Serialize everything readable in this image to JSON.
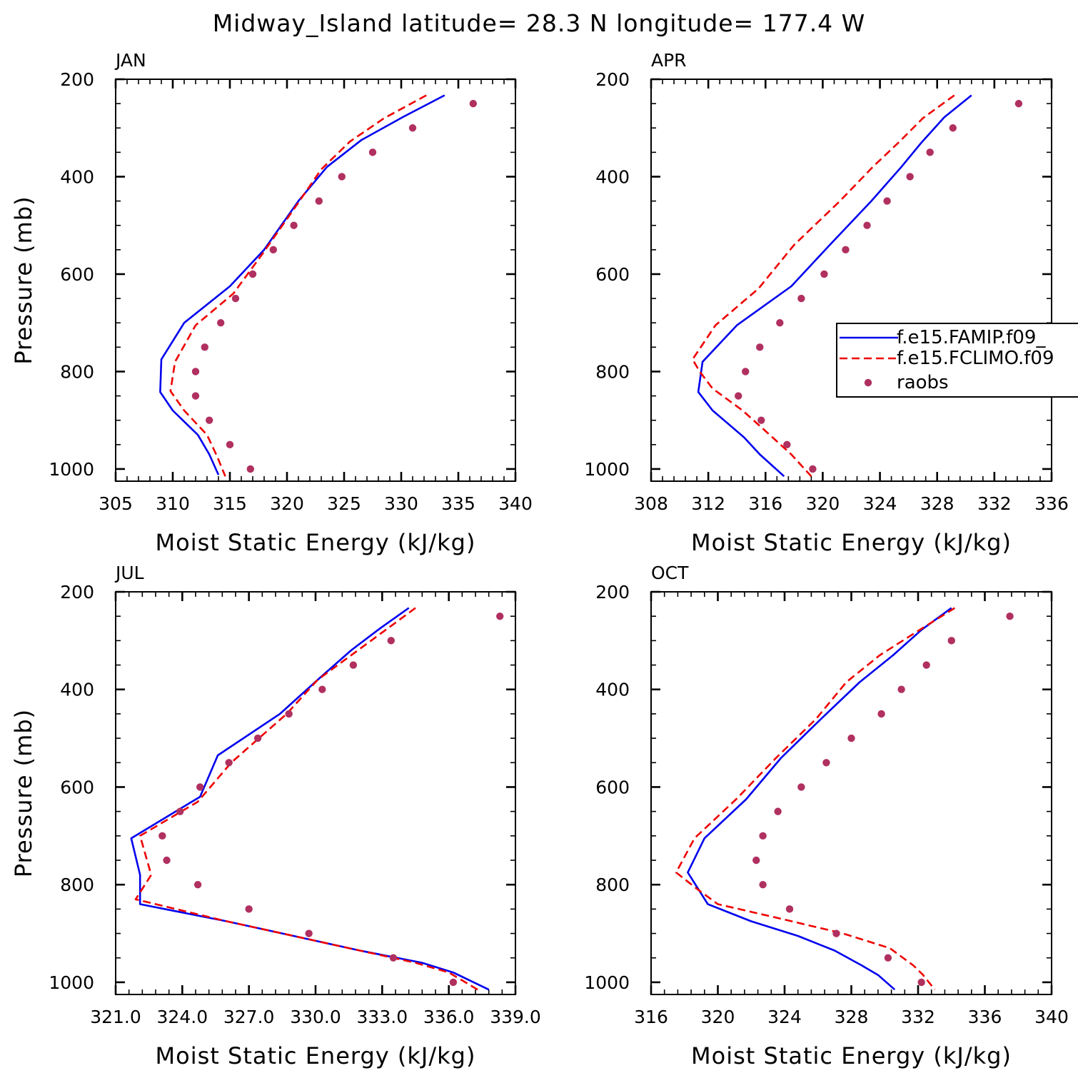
{
  "figure": {
    "title": "Midway_Island  latitude= 28.3 N longitude= 177.4 W"
  },
  "legend": {
    "panel": 1,
    "entries": [
      {
        "label": "f.e15.FAMIP.f09_",
        "style": "solid",
        "color": "#0000ee"
      },
      {
        "label": "f.e15.FCLIMO.f09",
        "style": "dashed",
        "color": "#ee0000"
      },
      {
        "label": "raobs",
        "style": "dots",
        "color": "#b03060"
      }
    ]
  },
  "chart_data": [
    {
      "type": "line",
      "panel_title": "JAN",
      "xlabel": "Moist Static Energy (kJ/kg)",
      "ylabel": "Pressure (mb)",
      "xlim": [
        305,
        340
      ],
      "xticks": [
        305,
        310,
        315,
        320,
        325,
        330,
        335,
        340
      ],
      "xtick_labels": [
        "305",
        "310",
        "315",
        "320",
        "325",
        "330",
        "335",
        "340"
      ],
      "ylim": [
        200,
        1025
      ],
      "yticks": [
        200,
        400,
        600,
        800,
        1000
      ],
      "series": [
        {
          "name": "f.e15.FAMIP.f09_",
          "style": "solid",
          "color": "#0000ee",
          "y": [
            233,
            277,
            325,
            380,
            450,
            550,
            625,
            700,
            775,
            842,
            880,
            930,
            970,
            1012
          ],
          "x": [
            333.8,
            330.2,
            326.5,
            323.5,
            321.0,
            318.0,
            315.0,
            311.0,
            309.0,
            308.9,
            310.0,
            312.2,
            313.2,
            314.0
          ]
        },
        {
          "name": "f.e15.FCLIMO.f09",
          "style": "dashed",
          "color": "#ee0000",
          "y": [
            233,
            280,
            328,
            385,
            460,
            560,
            640,
            705,
            780,
            840,
            880,
            930,
            975,
            1015
          ],
          "x": [
            332.2,
            328.5,
            325.5,
            323.0,
            320.8,
            317.8,
            315.3,
            312.0,
            310.2,
            309.8,
            311.0,
            313.0,
            313.9,
            314.6
          ]
        },
        {
          "name": "raobs",
          "style": "dots",
          "color": "#b03060",
          "y": [
            250,
            300,
            350,
            400,
            450,
            500,
            550,
            600,
            650,
            700,
            750,
            800,
            850,
            900,
            950,
            1000
          ],
          "x": [
            336.3,
            331.0,
            327.5,
            324.8,
            322.8,
            320.6,
            318.8,
            317.0,
            315.5,
            314.2,
            312.8,
            312.0,
            312.0,
            313.2,
            315.0,
            316.8
          ]
        }
      ]
    },
    {
      "type": "line",
      "panel_title": "APR",
      "xlabel": "Moist Static Energy (kJ/kg)",
      "ylabel": "",
      "xlim": [
        308,
        336
      ],
      "xticks": [
        308,
        312,
        316,
        320,
        324,
        328,
        332,
        336
      ],
      "xtick_labels": [
        "308",
        "312",
        "316",
        "320",
        "324",
        "328",
        "332",
        "336"
      ],
      "ylim": [
        200,
        1025
      ],
      "yticks": [
        200,
        400,
        600,
        800,
        1000
      ],
      "series": [
        {
          "name": "f.e15.FAMIP.f09_",
          "style": "solid",
          "color": "#0000ee",
          "y": [
            233,
            278,
            330,
            380,
            450,
            540,
            625,
            705,
            780,
            842,
            880,
            935,
            970,
            1015
          ],
          "x": [
            330.4,
            328.5,
            326.9,
            325.5,
            323.4,
            320.5,
            317.8,
            314.0,
            311.6,
            311.3,
            312.3,
            314.5,
            315.6,
            317.3
          ]
        },
        {
          "name": "f.e15.FCLIMO.f09",
          "style": "dashed",
          "color": "#ee0000",
          "y": [
            233,
            280,
            330,
            380,
            450,
            540,
            630,
            705,
            775,
            800,
            835,
            880,
            930,
            970,
            1015
          ],
          "x": [
            329.2,
            327.0,
            325.3,
            323.5,
            321.2,
            318.0,
            315.5,
            312.5,
            310.9,
            311.4,
            312.3,
            314.4,
            316.3,
            317.8,
            319.2
          ]
        },
        {
          "name": "raobs",
          "style": "dots",
          "color": "#b03060",
          "y": [
            250,
            300,
            350,
            400,
            450,
            500,
            550,
            600,
            650,
            700,
            750,
            800,
            850,
            900,
            950,
            1000
          ],
          "x": [
            333.7,
            329.1,
            327.5,
            326.1,
            324.5,
            323.1,
            321.6,
            320.1,
            318.5,
            317.0,
            315.6,
            314.6,
            314.1,
            315.7,
            317.5,
            319.3
          ]
        }
      ]
    },
    {
      "type": "line",
      "panel_title": "JUL",
      "xlabel": "Moist Static Energy (kJ/kg)",
      "ylabel": "Pressure (mb)",
      "xlim": [
        321,
        339
      ],
      "xticks": [
        321,
        324,
        327,
        330,
        333,
        336,
        339
      ],
      "xtick_labels": [
        "321.0",
        "324.0",
        "327.0",
        "330.0",
        "333.0",
        "336.0",
        "339.0"
      ],
      "ylim": [
        200,
        1025
      ],
      "yticks": [
        200,
        400,
        600,
        800,
        1000
      ],
      "series": [
        {
          "name": "f.e15.FAMIP.f09_",
          "style": "solid",
          "color": "#0000ee",
          "y": [
            233,
            275,
            320,
            380,
            450,
            535,
            620,
            705,
            780,
            840,
            875,
            900,
            935,
            960,
            980,
            1015
          ],
          "x": [
            334.2,
            332.9,
            331.6,
            330.1,
            328.4,
            325.6,
            324.8,
            321.7,
            322.1,
            322.1,
            326.0,
            328.5,
            332.0,
            334.8,
            336.2,
            337.8
          ]
        },
        {
          "name": "f.e15.FCLIMO.f09",
          "style": "dashed",
          "color": "#ee0000",
          "y": [
            233,
            280,
            330,
            380,
            450,
            550,
            630,
            700,
            780,
            830,
            875,
            900,
            930,
            960,
            980,
            1015
          ],
          "x": [
            334.5,
            333.1,
            331.6,
            330.1,
            328.7,
            326.2,
            324.7,
            322.1,
            322.6,
            321.9,
            326.0,
            328.5,
            331.5,
            334.5,
            336.0,
            337.3
          ]
        },
        {
          "name": "raobs",
          "style": "dots",
          "color": "#b03060",
          "y": [
            250,
            300,
            350,
            400,
            450,
            500,
            550,
            600,
            650,
            700,
            750,
            800,
            850,
            900,
            950,
            1000
          ],
          "x": [
            338.3,
            333.4,
            331.7,
            330.3,
            328.8,
            327.4,
            326.1,
            324.8,
            323.9,
            323.1,
            323.3,
            324.7,
            327.0,
            329.7,
            333.5,
            336.2
          ]
        }
      ]
    },
    {
      "type": "line",
      "panel_title": "OCT",
      "xlabel": "Moist Static Energy (kJ/kg)",
      "ylabel": "",
      "xlim": [
        316,
        340
      ],
      "xticks": [
        316,
        320,
        324,
        328,
        332,
        336,
        340
      ],
      "xtick_labels": [
        "316",
        "320",
        "324",
        "328",
        "332",
        "336",
        "340"
      ],
      "ylim": [
        200,
        1025
      ],
      "yticks": [
        200,
        400,
        600,
        800,
        1000
      ],
      "series": [
        {
          "name": "f.e15.FAMIP.f09_",
          "style": "solid",
          "color": "#0000ee",
          "y": [
            233,
            278,
            330,
            385,
            460,
            540,
            625,
            705,
            775,
            840,
            875,
            905,
            935,
            965,
            985,
            1015
          ],
          "x": [
            334.0,
            332.2,
            330.5,
            328.5,
            326.2,
            323.8,
            321.7,
            319.2,
            318.2,
            319.4,
            322.0,
            324.8,
            327.0,
            328.6,
            329.6,
            330.6
          ]
        },
        {
          "name": "f.e15.FCLIMO.f09",
          "style": "dashed",
          "color": "#ee0000",
          "y": [
            233,
            280,
            330,
            385,
            460,
            540,
            625,
            705,
            775,
            810,
            840,
            870,
            900,
            930,
            965,
            985,
            1015
          ],
          "x": [
            334.2,
            332.0,
            329.7,
            327.7,
            325.9,
            323.5,
            321.1,
            318.6,
            317.5,
            318.8,
            320.0,
            323.8,
            327.5,
            330.3,
            331.7,
            332.3,
            333.0
          ]
        },
        {
          "name": "raobs",
          "style": "dots",
          "color": "#b03060",
          "y": [
            250,
            300,
            350,
            400,
            450,
            500,
            550,
            600,
            650,
            700,
            750,
            800,
            850,
            900,
            950,
            1000
          ],
          "x": [
            337.5,
            334.0,
            332.5,
            331.0,
            329.8,
            328.0,
            326.5,
            325.0,
            323.6,
            322.7,
            322.3,
            322.7,
            324.3,
            327.1,
            330.2,
            332.2
          ]
        }
      ]
    }
  ]
}
